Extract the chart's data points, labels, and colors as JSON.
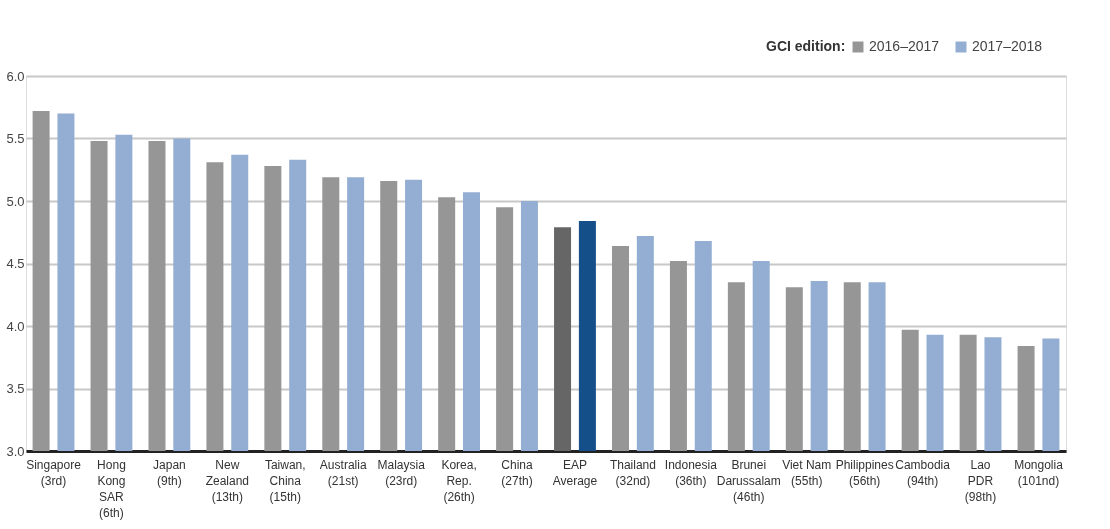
{
  "chart_data": {
    "type": "bar",
    "legend_title": "GCI edition:",
    "legend": "top right",
    "grid": "y",
    "categories": [
      "Singapore\n(3rd)",
      "Hong\nKong\nSAR\n(6th)",
      "Japan\n(9th)",
      "New\nZealand\n(13th)",
      "Taiwan,\nChina\n(15th)",
      "Australia\n(21st)",
      "Malaysia\n(23rd)",
      "Korea,\nRep.\n(26th)",
      "China\n(27th)",
      "EAP\nAverage",
      "Thailand\n(32nd)",
      "Indonesia\n(36th)",
      "Brunei\nDarussalam\n(46th)",
      "Viet Nam\n(55th)",
      "Philippines\n(56th)",
      "Cambodia\n(94th)",
      "Lao\nPDR\n(98th)",
      "Mongolia\n(101nd)"
    ],
    "series": [
      {
        "name": "2016–2017",
        "color": "#969696",
        "colors": [
          "#969696",
          "#969696",
          "#969696",
          "#969696",
          "#969696",
          "#969696",
          "#969696",
          "#969696",
          "#969696",
          "#666666",
          "#969696",
          "#969696",
          "#969696",
          "#969696",
          "#969696",
          "#969696",
          "#969696",
          "#969696"
        ],
        "values": [
          5.72,
          5.48,
          5.48,
          5.31,
          5.28,
          5.19,
          5.16,
          5.03,
          4.95,
          4.79,
          4.64,
          4.52,
          4.35,
          4.31,
          4.35,
          3.97,
          3.93,
          3.84
        ]
      },
      {
        "name": "2017–2018",
        "color": "#93aed2",
        "colors": [
          "#93aed2",
          "#93aed2",
          "#93aed2",
          "#93aed2",
          "#93aed2",
          "#93aed2",
          "#93aed2",
          "#93aed2",
          "#93aed2",
          "#154f8a",
          "#93aed2",
          "#93aed2",
          "#93aed2",
          "#93aed2",
          "#93aed2",
          "#93aed2",
          "#93aed2",
          "#93aed2"
        ],
        "values": [
          5.7,
          5.53,
          5.5,
          5.37,
          5.33,
          5.19,
          5.17,
          5.07,
          5.0,
          4.84,
          4.72,
          4.68,
          4.52,
          4.36,
          4.35,
          3.93,
          3.91,
          3.9
        ]
      }
    ],
    "ylim": [
      3.0,
      6.0
    ],
    "yticks": [
      {
        "value": 3.0,
        "label": "3.0"
      },
      {
        "value": 3.5,
        "label": "3.5"
      },
      {
        "value": 4.0,
        "label": "4.0"
      },
      {
        "value": 4.5,
        "label": "4.5"
      },
      {
        "value": 5.0,
        "label": "5.0"
      },
      {
        "value": 5.5,
        "label": "5.5"
      },
      {
        "value": 6.0,
        "label": "6.0"
      }
    ]
  }
}
